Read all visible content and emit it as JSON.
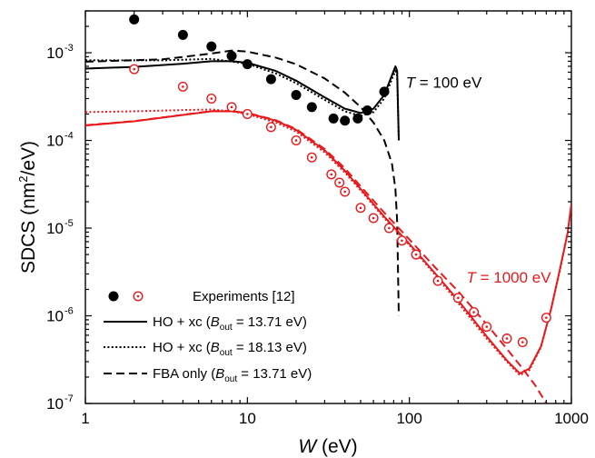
{
  "chart_data": {
    "type": "scatter",
    "xlabel": {
      "symbol": "W",
      "unit": " (eV)"
    },
    "ylabel": {
      "text": "SDCS (nm",
      "sup": "2",
      "rest": "/eV)"
    },
    "xscale": "log",
    "yscale": "log",
    "xlim": [
      1,
      1000
    ],
    "ylim": [
      1e-07,
      0.003
    ],
    "xticks": [
      {
        "v": 1,
        "label": "1"
      },
      {
        "v": 10,
        "label": "10"
      },
      {
        "v": 100,
        "label": "100"
      },
      {
        "v": 1000,
        "label": "1000"
      }
    ],
    "yticks": [
      {
        "v": 1e-07,
        "base": "10",
        "exp": "-7"
      },
      {
        "v": 1e-06,
        "base": "10",
        "exp": "-6"
      },
      {
        "v": 1e-05,
        "base": "10",
        "exp": "-5"
      },
      {
        "v": 0.0001,
        "base": "10",
        "exp": "-4"
      },
      {
        "v": 0.001,
        "base": "10",
        "exp": "-3"
      }
    ],
    "annotations": [
      {
        "italic": "T",
        "rest": " = 100 eV",
        "color": "#000000",
        "at": [
          95,
          0.0004
        ]
      },
      {
        "italic": "T",
        "rest": " = 1000 eV",
        "color": "#e8191c",
        "at": [
          225,
          2.4e-06
        ]
      }
    ],
    "legend": {
      "position": "bottom-left",
      "entries": [
        {
          "key": "markers",
          "pre": "Experiments [12]"
        },
        {
          "key": "solid",
          "pre": "HO + xc (",
          "italic": "B",
          "sub": "out",
          "post": " = 13.71 eV)"
        },
        {
          "key": "dotted",
          "pre": "HO + xc (",
          "italic": "B",
          "sub": "out",
          "post": " = 18.13 eV)"
        },
        {
          "key": "dashed",
          "pre": "FBA only (",
          "italic": "B",
          "sub": "out",
          "post": " = 13.71 eV)"
        }
      ]
    },
    "series": [
      {
        "group": "T = 100 eV",
        "kind": "Experiments",
        "style": "filled-circle",
        "color": "#000000",
        "points": [
          [
            2,
            0.0024
          ],
          [
            4,
            0.0016
          ],
          [
            6,
            0.00118
          ],
          [
            8,
            0.00092
          ],
          [
            10,
            0.00074
          ],
          [
            14,
            0.0005
          ],
          [
            20,
            0.00033
          ],
          [
            25,
            0.00024
          ],
          [
            34,
            0.000178
          ],
          [
            40,
            0.000168
          ],
          [
            48,
            0.000178
          ],
          [
            55,
            0.00022
          ],
          [
            70,
            0.00036
          ]
        ]
      },
      {
        "group": "T = 1000 eV",
        "kind": "Experiments",
        "style": "open-circle-dot",
        "color": "#e8191c",
        "points": [
          [
            2,
            0.00065
          ],
          [
            4,
            0.00041
          ],
          [
            6,
            0.0003
          ],
          [
            8,
            0.00024
          ],
          [
            10,
            0.0002
          ],
          [
            14,
            0.000142
          ],
          [
            20,
            0.0001
          ],
          [
            25,
            6.4e-05
          ],
          [
            33,
            4.1e-05
          ],
          [
            37,
            3.3e-05
          ],
          [
            40,
            2.6e-05
          ],
          [
            50,
            1.7e-05
          ],
          [
            60,
            1.3e-05
          ],
          [
            75,
            1e-05
          ],
          [
            90,
            7.2e-06
          ],
          [
            110,
            5e-06
          ],
          [
            150,
            2.5e-06
          ],
          [
            200,
            1.6e-06
          ],
          [
            250,
            1.1e-06
          ],
          [
            300,
            7.5e-07
          ],
          [
            400,
            5.5e-07
          ],
          [
            500,
            5e-07
          ],
          [
            700,
            9.5e-07
          ]
        ]
      },
      {
        "group": "T = 100 eV",
        "kind": "HO + xc (13.71 eV)",
        "style": "solid",
        "color": "#000000",
        "points": [
          [
            1,
            0.00066
          ],
          [
            2,
            0.00069
          ],
          [
            4,
            0.00075
          ],
          [
            6,
            0.0008
          ],
          [
            8,
            0.0008
          ],
          [
            10,
            0.00077
          ],
          [
            15,
            0.00062
          ],
          [
            20,
            0.00048
          ],
          [
            30,
            0.00031
          ],
          [
            40,
            0.00023
          ],
          [
            50,
            0.000205
          ],
          [
            60,
            0.00023
          ],
          [
            70,
            0.00033
          ],
          [
            78,
            0.00055
          ],
          [
            82,
            0.0007
          ],
          [
            84,
            0.00062
          ],
          [
            86,
            0.0001
          ]
        ]
      },
      {
        "group": "T = 100 eV",
        "kind": "HO + xc (18.13 eV)",
        "style": "dotted",
        "color": "#000000",
        "points": [
          [
            1,
            0.00082
          ],
          [
            3,
            0.00082
          ],
          [
            6,
            0.00085
          ],
          [
            10,
            0.00075
          ],
          [
            15,
            0.00058
          ],
          [
            20,
            0.00045
          ],
          [
            30,
            0.00029
          ],
          [
            40,
            0.000215
          ],
          [
            50,
            0.00019
          ],
          [
            60,
            0.00021
          ],
          [
            70,
            0.0003
          ],
          [
            78,
            0.0005
          ],
          [
            82,
            0.00062
          ],
          [
            84,
            0.00055
          ],
          [
            86,
            0.0001
          ]
        ]
      },
      {
        "group": "T = 100 eV",
        "kind": "FBA only (13.71 eV)",
        "style": "dashed",
        "color": "#000000",
        "points": [
          [
            1,
            0.00079
          ],
          [
            3,
            0.00084
          ],
          [
            6,
            0.00098
          ],
          [
            8,
            0.00106
          ],
          [
            10,
            0.00103
          ],
          [
            15,
            0.00088
          ],
          [
            20,
            0.00074
          ],
          [
            30,
            0.00051
          ],
          [
            40,
            0.00035
          ],
          [
            50,
            0.00024
          ],
          [
            60,
            0.00016
          ],
          [
            70,
            0.0001
          ],
          [
            78,
            5.5e-05
          ],
          [
            82,
            2.8e-05
          ],
          [
            84,
            1.2e-05
          ],
          [
            86,
            1e-06
          ]
        ]
      },
      {
        "group": "T = 1000 eV",
        "kind": "HO + xc (13.71 eV)",
        "style": "solid",
        "color": "#e8191c",
        "points": [
          [
            1,
            0.000148
          ],
          [
            2,
            0.000165
          ],
          [
            4,
            0.000195
          ],
          [
            6,
            0.000215
          ],
          [
            8,
            0.000215
          ],
          [
            10,
            0.000205
          ],
          [
            15,
            0.000168
          ],
          [
            20,
            0.000132
          ],
          [
            30,
            7.7e-05
          ],
          [
            40,
            4.5e-05
          ],
          [
            50,
            2.8e-05
          ],
          [
            70,
            1.35e-05
          ],
          [
            100,
            6.6e-06
          ],
          [
            150,
            2.8e-06
          ],
          [
            200,
            1.5e-06
          ],
          [
            300,
            5.8e-07
          ],
          [
            400,
            3.1e-07
          ],
          [
            480,
            2.2e-07
          ],
          [
            550,
            2.5e-07
          ],
          [
            650,
            4.5e-07
          ],
          [
            750,
            1.2e-06
          ],
          [
            850,
            3.4e-06
          ],
          [
            950,
            9e-06
          ],
          [
            1000,
            1.9e-05
          ]
        ]
      },
      {
        "group": "T = 1000 eV",
        "kind": "HO + xc (18.13 eV)",
        "style": "dotted",
        "color": "#e8191c",
        "points": [
          [
            1,
            0.00021
          ],
          [
            2,
            0.000215
          ],
          [
            4,
            0.000222
          ],
          [
            6,
            0.000225
          ],
          [
            8,
            0.000215
          ],
          [
            10,
            0.0002
          ],
          [
            15,
            0.00016
          ],
          [
            20,
            0.000126
          ],
          [
            30,
            7.3e-05
          ],
          [
            40,
            4.3e-05
          ],
          [
            50,
            2.7e-05
          ],
          [
            70,
            1.3e-05
          ],
          [
            100,
            6.4e-06
          ],
          [
            150,
            2.7e-06
          ],
          [
            200,
            1.4e-06
          ],
          [
            300,
            5.5e-07
          ],
          [
            400,
            3e-07
          ],
          [
            480,
            2.1e-07
          ],
          [
            550,
            2.4e-07
          ],
          [
            650,
            4.4e-07
          ],
          [
            750,
            1.2e-06
          ],
          [
            850,
            3.3e-06
          ],
          [
            950,
            8.8e-06
          ],
          [
            1000,
            1.8e-05
          ]
        ]
      },
      {
        "group": "T = 1000 eV",
        "kind": "FBA only (13.71 eV)",
        "style": "dashed",
        "color": "#e8191c",
        "points": [
          [
            1,
            0.000149
          ],
          [
            2,
            0.000166
          ],
          [
            4,
            0.000196
          ],
          [
            6,
            0.000216
          ],
          [
            8,
            0.000216
          ],
          [
            10,
            0.000206
          ],
          [
            15,
            0.00017
          ],
          [
            20,
            0.000135
          ],
          [
            30,
            8e-05
          ],
          [
            40,
            4.8e-05
          ],
          [
            50,
            3e-05
          ],
          [
            70,
            1.5e-05
          ],
          [
            100,
            7.4e-06
          ],
          [
            150,
            3.3e-06
          ],
          [
            200,
            1.9e-06
          ],
          [
            300,
            8e-07
          ],
          [
            400,
            4.2e-07
          ],
          [
            500,
            2.5e-07
          ],
          [
            600,
            1.6e-07
          ],
          [
            700,
            1e-07
          ]
        ]
      }
    ]
  }
}
